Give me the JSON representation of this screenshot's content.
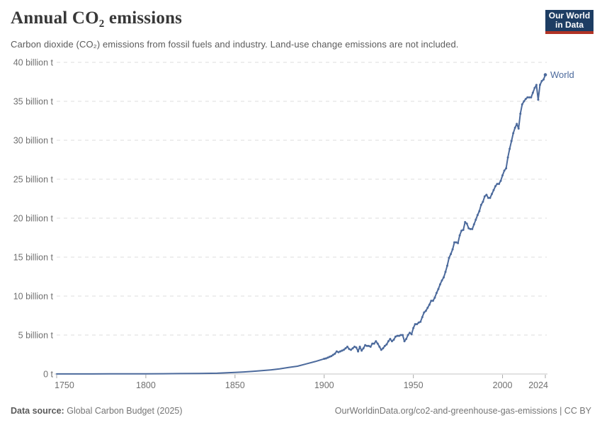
{
  "header": {
    "title": "Annual CO₂ emissions",
    "subtitle": "Carbon dioxide (CO₂) emissions from fossil fuels and industry. Land-use change emissions are not included.",
    "logo": {
      "line1": "Our World",
      "line2": "in Data"
    }
  },
  "colors": {
    "series_line": "#4c6a9c",
    "logo_background": "#1d3d63",
    "logo_underline": "#b13325",
    "gridline": "#dedede",
    "axis_line": "#c4c4c4",
    "tick_mark": "#a8a8a8",
    "tick_label": "#707070",
    "title_text": "#383838",
    "subtitle_text": "#5b5b5b",
    "footer_text": "#757575"
  },
  "chart_data": {
    "type": "line",
    "title": "Annual CO₂ emissions",
    "xlabel": "",
    "ylabel": "",
    "xlim": [
      1750,
      2024
    ],
    "ylim": [
      0,
      40
    ],
    "grid": "dashed-horizontal",
    "legend_position": "end-of-line-label",
    "x_ticks": [
      {
        "v": 1750,
        "label": "1750"
      },
      {
        "v": 1800,
        "label": "1800"
      },
      {
        "v": 1850,
        "label": "1850"
      },
      {
        "v": 1900,
        "label": "1900"
      },
      {
        "v": 1950,
        "label": "1950"
      },
      {
        "v": 2000,
        "label": "2000"
      },
      {
        "v": 2024,
        "label": "2024"
      }
    ],
    "y_ticks": [
      {
        "v": 0,
        "label": "0 t"
      },
      {
        "v": 5,
        "label": "5 billion t"
      },
      {
        "v": 10,
        "label": "10 billion t"
      },
      {
        "v": 15,
        "label": "15 billion t"
      },
      {
        "v": 20,
        "label": "20 billion t"
      },
      {
        "v": 25,
        "label": "25 billion t"
      },
      {
        "v": 30,
        "label": "30 billion t"
      },
      {
        "v": 35,
        "label": "35 billion t"
      },
      {
        "v": 40,
        "label": "40 billion t"
      }
    ],
    "unit": "billion t",
    "series": [
      {
        "name": "World",
        "color": "#4c6a9c",
        "points": [
          [
            1750,
            0.01
          ],
          [
            1760,
            0.01
          ],
          [
            1770,
            0.01
          ],
          [
            1780,
            0.02
          ],
          [
            1790,
            0.02
          ],
          [
            1800,
            0.03
          ],
          [
            1810,
            0.04
          ],
          [
            1820,
            0.05
          ],
          [
            1830,
            0.07
          ],
          [
            1840,
            0.1
          ],
          [
            1850,
            0.2
          ],
          [
            1855,
            0.26
          ],
          [
            1860,
            0.34
          ],
          [
            1865,
            0.43
          ],
          [
            1870,
            0.53
          ],
          [
            1875,
            0.66
          ],
          [
            1880,
            0.84
          ],
          [
            1885,
            1.0
          ],
          [
            1890,
            1.3
          ],
          [
            1895,
            1.6
          ],
          [
            1900,
            1.95
          ],
          [
            1901,
            2.0
          ],
          [
            1902,
            2.1
          ],
          [
            1903,
            2.2
          ],
          [
            1904,
            2.3
          ],
          [
            1905,
            2.45
          ],
          [
            1906,
            2.6
          ],
          [
            1907,
            2.9
          ],
          [
            1908,
            2.8
          ],
          [
            1909,
            2.9
          ],
          [
            1910,
            3.0
          ],
          [
            1911,
            3.1
          ],
          [
            1912,
            3.3
          ],
          [
            1913,
            3.5
          ],
          [
            1914,
            3.2
          ],
          [
            1915,
            3.1
          ],
          [
            1916,
            3.3
          ],
          [
            1917,
            3.5
          ],
          [
            1918,
            3.4
          ],
          [
            1919,
            2.9
          ],
          [
            1920,
            3.5
          ],
          [
            1921,
            3.0
          ],
          [
            1922,
            3.3
          ],
          [
            1923,
            3.7
          ],
          [
            1924,
            3.6
          ],
          [
            1925,
            3.6
          ],
          [
            1926,
            3.5
          ],
          [
            1927,
            3.9
          ],
          [
            1928,
            3.9
          ],
          [
            1929,
            4.2
          ],
          [
            1930,
            3.9
          ],
          [
            1931,
            3.5
          ],
          [
            1932,
            3.1
          ],
          [
            1933,
            3.3
          ],
          [
            1934,
            3.6
          ],
          [
            1935,
            3.8
          ],
          [
            1936,
            4.2
          ],
          [
            1937,
            4.5
          ],
          [
            1938,
            4.2
          ],
          [
            1939,
            4.4
          ],
          [
            1940,
            4.8
          ],
          [
            1941,
            4.9
          ],
          [
            1942,
            4.9
          ],
          [
            1943,
            5.0
          ],
          [
            1944,
            5.0
          ],
          [
            1945,
            4.2
          ],
          [
            1946,
            4.5
          ],
          [
            1947,
            5.0
          ],
          [
            1948,
            5.3
          ],
          [
            1949,
            5.1
          ],
          [
            1950,
            5.9
          ],
          [
            1951,
            6.4
          ],
          [
            1952,
            6.4
          ],
          [
            1953,
            6.6
          ],
          [
            1954,
            6.7
          ],
          [
            1955,
            7.3
          ],
          [
            1956,
            7.9
          ],
          [
            1957,
            8.1
          ],
          [
            1958,
            8.5
          ],
          [
            1959,
            8.9
          ],
          [
            1960,
            9.4
          ],
          [
            1961,
            9.4
          ],
          [
            1962,
            9.8
          ],
          [
            1963,
            10.4
          ],
          [
            1964,
            10.9
          ],
          [
            1965,
            11.5
          ],
          [
            1966,
            12.0
          ],
          [
            1967,
            12.4
          ],
          [
            1968,
            13.1
          ],
          [
            1969,
            13.9
          ],
          [
            1970,
            14.9
          ],
          [
            1971,
            15.4
          ],
          [
            1972,
            16.0
          ],
          [
            1973,
            16.9
          ],
          [
            1974,
            16.9
          ],
          [
            1975,
            16.8
          ],
          [
            1976,
            17.8
          ],
          [
            1977,
            18.4
          ],
          [
            1978,
            18.5
          ],
          [
            1979,
            19.5
          ],
          [
            1980,
            19.3
          ],
          [
            1981,
            18.7
          ],
          [
            1982,
            18.6
          ],
          [
            1983,
            18.6
          ],
          [
            1984,
            19.2
          ],
          [
            1985,
            19.8
          ],
          [
            1986,
            20.4
          ],
          [
            1987,
            20.9
          ],
          [
            1988,
            21.7
          ],
          [
            1989,
            22.1
          ],
          [
            1990,
            22.8
          ],
          [
            1991,
            23.0
          ],
          [
            1992,
            22.6
          ],
          [
            1993,
            22.6
          ],
          [
            1994,
            23.1
          ],
          [
            1995,
            23.6
          ],
          [
            1996,
            24.1
          ],
          [
            1997,
            24.4
          ],
          [
            1998,
            24.4
          ],
          [
            1999,
            24.8
          ],
          [
            2000,
            25.5
          ],
          [
            2001,
            26.1
          ],
          [
            2002,
            26.4
          ],
          [
            2003,
            27.8
          ],
          [
            2004,
            28.9
          ],
          [
            2005,
            29.9
          ],
          [
            2006,
            30.9
          ],
          [
            2007,
            31.6
          ],
          [
            2008,
            32.1
          ],
          [
            2009,
            31.5
          ],
          [
            2010,
            33.4
          ],
          [
            2011,
            34.6
          ],
          [
            2012,
            35.0
          ],
          [
            2013,
            35.3
          ],
          [
            2014,
            35.5
          ],
          [
            2015,
            35.5
          ],
          [
            2016,
            35.5
          ],
          [
            2017,
            36.1
          ],
          [
            2018,
            36.7
          ],
          [
            2019,
            37.1
          ],
          [
            2020,
            35.2
          ],
          [
            2021,
            37.1
          ],
          [
            2022,
            37.6
          ],
          [
            2023,
            37.8
          ],
          [
            2024,
            38.4
          ]
        ]
      }
    ],
    "end_label": "World"
  },
  "footer": {
    "source_label": "Data source:",
    "source_value": "Global Carbon Budget (2025)",
    "url": "OurWorldinData.org/co2-and-greenhouse-gas-emissions",
    "divider": " | ",
    "license": "CC BY"
  }
}
